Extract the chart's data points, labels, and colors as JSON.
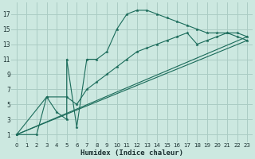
{
  "bg_color": "#cce8e0",
  "grid_color": "#aaccc4",
  "line_color": "#1a6b5a",
  "xlabel": "Humidex (Indice chaleur)",
  "xlim": [
    -0.5,
    23.5
  ],
  "ylim": [
    0,
    18.5
  ],
  "xticks": [
    0,
    1,
    2,
    3,
    4,
    5,
    6,
    7,
    8,
    9,
    10,
    11,
    12,
    13,
    14,
    15,
    16,
    17,
    18,
    19,
    20,
    21,
    22,
    23
  ],
  "yticks": [
    1,
    3,
    5,
    7,
    9,
    11,
    13,
    15,
    17
  ],
  "line1_x": [
    0,
    2,
    3,
    4,
    5,
    5,
    6,
    7,
    8,
    9,
    10,
    11,
    12,
    13,
    14,
    15,
    16,
    17,
    18,
    19,
    20,
    21,
    22,
    23
  ],
  "line1_y": [
    1,
    1,
    6,
    4,
    3,
    11,
    2,
    11,
    11,
    12,
    15,
    17,
    17.5,
    17.5,
    17,
    16.5,
    16,
    15.5,
    15,
    14.5,
    14.5,
    14.5,
    14,
    13.5
  ],
  "line2_x": [
    0,
    3,
    5,
    6,
    7,
    8,
    9,
    10,
    11,
    12,
    13,
    14,
    15,
    16,
    17,
    18,
    19,
    20,
    21,
    22,
    23
  ],
  "line2_y": [
    1,
    6,
    6,
    5,
    7,
    8,
    9,
    10,
    11,
    12,
    12.5,
    13,
    13.5,
    14,
    14.5,
    13,
    13.5,
    14,
    14.5,
    14.5,
    14
  ],
  "line3_x": [
    0,
    23
  ],
  "line3_y": [
    1,
    13.5
  ],
  "line4_x": [
    0,
    23
  ],
  "line4_y": [
    1,
    14
  ]
}
